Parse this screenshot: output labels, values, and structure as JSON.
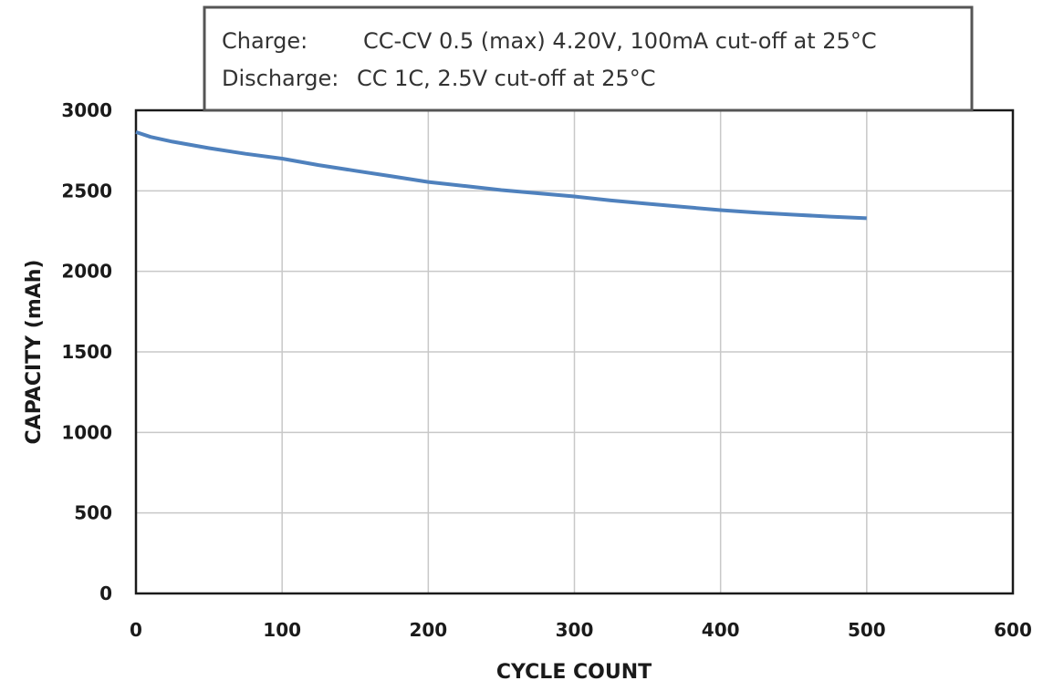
{
  "chart_data": {
    "type": "line",
    "title": "",
    "xlabel": "CYCLE COUNT",
    "ylabel": "CAPACITY (mAh)",
    "xlim": [
      0,
      600
    ],
    "ylim": [
      0,
      3000
    ],
    "x_ticks": [
      "0",
      "100",
      "200",
      "300",
      "400",
      "500",
      "600"
    ],
    "y_ticks": [
      "0",
      "500",
      "1000",
      "1500",
      "2000",
      "2500",
      "3000"
    ],
    "grid": true,
    "series": [
      {
        "color": "#4f81bd",
        "x": [
          0,
          10,
          25,
          50,
          75,
          100,
          125,
          150,
          175,
          200,
          225,
          250,
          275,
          300,
          325,
          350,
          375,
          400,
          425,
          450,
          475,
          500
        ],
        "y": [
          2865,
          2835,
          2805,
          2765,
          2730,
          2700,
          2660,
          2625,
          2590,
          2555,
          2530,
          2505,
          2485,
          2465,
          2440,
          2420,
          2400,
          2380,
          2365,
          2352,
          2340,
          2330
        ]
      }
    ],
    "annotation": {
      "charge_label": "Charge:",
      "charge_value": "CC-CV 0.5 (max) 4.20V, 100mA cut-off at 25°C",
      "discharge_label": "Discharge:",
      "discharge_value": "CC 1C, 2.5V cut-off at 25°C"
    }
  }
}
